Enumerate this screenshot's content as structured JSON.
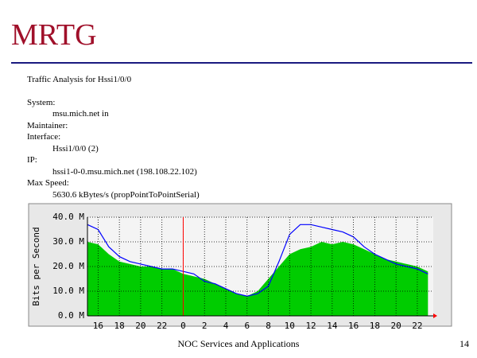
{
  "header": {
    "title": "MRTG"
  },
  "info": {
    "heading": "Traffic Analysis for Hssi1/0/0",
    "fields": [
      {
        "label": "System:",
        "value": "msu.mich.net in"
      },
      {
        "label": "Maintainer:"
      },
      {
        "label": "Interface:",
        "value": "Hssi1/0/0 (2)"
      },
      {
        "label": "IP:",
        "value": "hssi1-0-0.msu.mich.net (198.108.22.102)"
      },
      {
        "label": "Max Speed:",
        "value": "5630.6 kBytes/s (propPointToPointSerial)"
      }
    ]
  },
  "chart_data": {
    "type": "area-line",
    "y_label": "Bits per Second",
    "x": [
      15,
      16,
      17,
      18,
      19,
      20,
      21,
      22,
      23,
      24,
      25,
      26,
      27,
      28,
      29,
      30,
      31,
      32,
      33,
      34,
      35,
      36,
      37,
      38,
      39,
      40,
      41,
      42,
      43,
      44,
      45,
      46,
      47
    ],
    "series": [
      {
        "color": "#00cc00",
        "kind": "area",
        "values": [
          30,
          29,
          25,
          22,
          21,
          20,
          20,
          19,
          19,
          17,
          16,
          15,
          13,
          11,
          9,
          8,
          10,
          15,
          20,
          25,
          27,
          28,
          30,
          29,
          30,
          29,
          27,
          25,
          23,
          22,
          21,
          20,
          18
        ]
      },
      {
        "color": "#0000ff",
        "kind": "line",
        "values": [
          37,
          35,
          28,
          24,
          22,
          21,
          20,
          19,
          19,
          18,
          17,
          14,
          13,
          11,
          9,
          8,
          9,
          12,
          22,
          33,
          37,
          37,
          36,
          35,
          34,
          32,
          28,
          25,
          23,
          21,
          20,
          19,
          17
        ]
      }
    ],
    "xlim": [
      15,
      47.5
    ],
    "xticks": [
      16,
      18,
      20,
      22,
      {
        "value": 24,
        "label": "0"
      },
      {
        "value": 26,
        "label": "2"
      },
      {
        "value": 28,
        "label": "4"
      },
      {
        "value": 30,
        "label": "6"
      },
      {
        "value": 32,
        "label": "8"
      },
      {
        "value": 34,
        "label": "10"
      },
      {
        "value": 36,
        "label": "12"
      },
      {
        "value": 38,
        "label": "14"
      },
      {
        "value": 40,
        "label": "16"
      },
      {
        "value": 42,
        "label": "18"
      },
      {
        "value": 44,
        "label": "20"
      },
      {
        "value": 46,
        "label": "22"
      }
    ],
    "ylim": [
      0,
      40
    ],
    "yticks": [
      {
        "value": 0,
        "label": "0.0 M"
      },
      {
        "value": 10,
        "label": "10.0 M"
      },
      {
        "value": 20,
        "label": "20.0 M"
      },
      {
        "value": 30,
        "label": "30.0 M"
      },
      {
        "value": 40,
        "label": "40.0 M"
      }
    ],
    "day_break": 24,
    "day_break_color": "#ff0000",
    "grid": true
  },
  "footer": {
    "text": "NOC Services and Applications",
    "page": "14"
  }
}
